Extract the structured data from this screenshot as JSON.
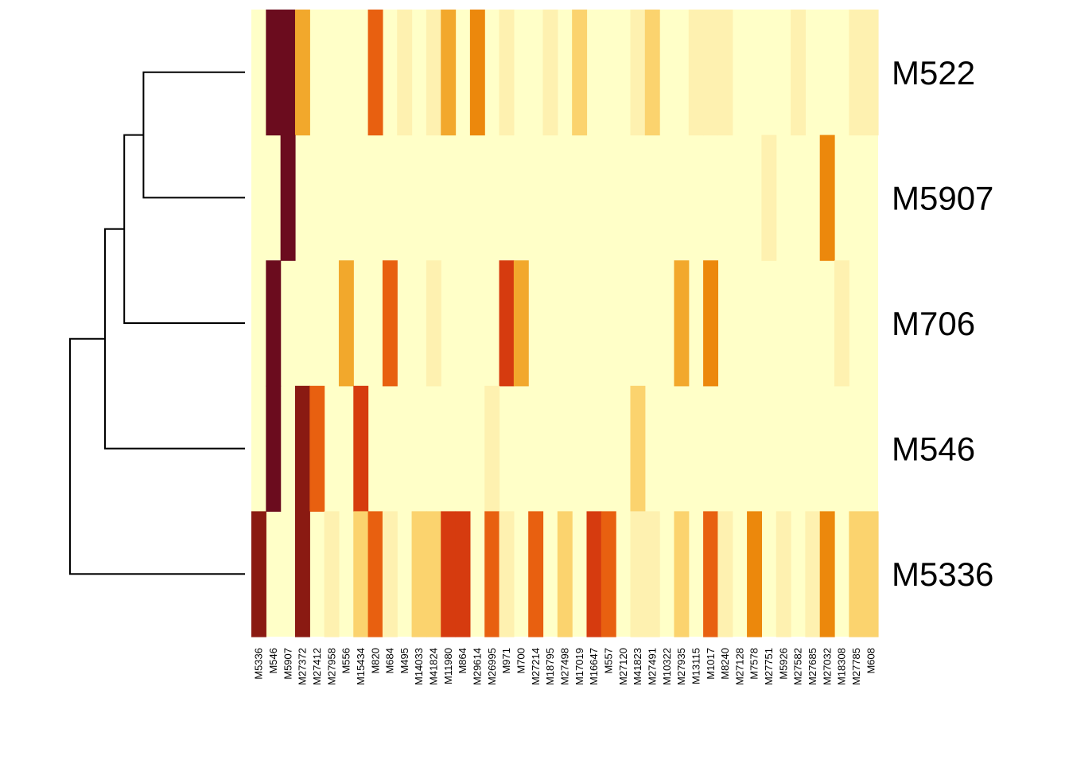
{
  "chart_data": {
    "type": "heatmap",
    "title": "",
    "xlabel": "",
    "ylabel": "",
    "colorscale": [
      "#FFFFC8",
      "#FEF1B0",
      "#FBD36E",
      "#F2A82C",
      "#EC880C",
      "#E86010",
      "#D63B0F",
      "#8A1A12",
      "#6B0C1E"
    ],
    "rows": [
      "M522",
      "M5907",
      "M706",
      "M546",
      "M5336"
    ],
    "columns": [
      "M5336",
      "M546",
      "M5907",
      "M27372",
      "M27412",
      "M27958",
      "M556",
      "M15434",
      "M820",
      "M684",
      "M495",
      "M14033",
      "M41824",
      "M11980",
      "M864",
      "M29614",
      "M26995",
      "M971",
      "M700",
      "M27214",
      "M18795",
      "M27498",
      "M17019",
      "M16647",
      "M557",
      "M27120",
      "M41823",
      "M27491",
      "M10322",
      "M27935",
      "M13115",
      "M1017",
      "M8240",
      "M27128",
      "M7578",
      "M27751",
      "M5926",
      "M27582",
      "M27685",
      "M27032",
      "M18308",
      "M27785",
      "M608"
    ],
    "value_range": [
      0,
      8
    ],
    "cells": [
      {
        "row": "M522",
        "col": "M546",
        "value": 8
      },
      {
        "row": "M522",
        "col": "M5907",
        "value": 8
      },
      {
        "row": "M522",
        "col": "M27372",
        "value": 3
      },
      {
        "row": "M522",
        "col": "M820",
        "value": 5
      },
      {
        "row": "M522",
        "col": "M495",
        "value": 1
      },
      {
        "row": "M522",
        "col": "M41824",
        "value": 1
      },
      {
        "row": "M522",
        "col": "M11980",
        "value": 3
      },
      {
        "row": "M522",
        "col": "M29614",
        "value": 4
      },
      {
        "row": "M522",
        "col": "M971",
        "value": 1
      },
      {
        "row": "M522",
        "col": "M18795",
        "value": 1
      },
      {
        "row": "M522",
        "col": "M17019",
        "value": 2
      },
      {
        "row": "M522",
        "col": "M41823",
        "value": 1
      },
      {
        "row": "M522",
        "col": "M27491",
        "value": 2
      },
      {
        "row": "M522",
        "col": "M13115",
        "value": 1
      },
      {
        "row": "M522",
        "col": "M1017",
        "value": 1
      },
      {
        "row": "M522",
        "col": "M8240",
        "value": 1
      },
      {
        "row": "M522",
        "col": "M27582",
        "value": 1
      },
      {
        "row": "M522",
        "col": "M27785",
        "value": 1
      },
      {
        "row": "M522",
        "col": "M608",
        "value": 1
      },
      {
        "row": "M5907",
        "col": "M5907",
        "value": 8
      },
      {
        "row": "M5907",
        "col": "M27751",
        "value": 1
      },
      {
        "row": "M5907",
        "col": "M27032",
        "value": 4
      },
      {
        "row": "M706",
        "col": "M546",
        "value": 8
      },
      {
        "row": "M706",
        "col": "M556",
        "value": 3
      },
      {
        "row": "M706",
        "col": "M684",
        "value": 5
      },
      {
        "row": "M706",
        "col": "M41824",
        "value": 1
      },
      {
        "row": "M706",
        "col": "M971",
        "value": 6
      },
      {
        "row": "M706",
        "col": "M700",
        "value": 3
      },
      {
        "row": "M706",
        "col": "M27935",
        "value": 3
      },
      {
        "row": "M706",
        "col": "M1017",
        "value": 4
      },
      {
        "row": "M706",
        "col": "M18308",
        "value": 1
      },
      {
        "row": "M546",
        "col": "M546",
        "value": 8
      },
      {
        "row": "M546",
        "col": "M27372",
        "value": 7
      },
      {
        "row": "M546",
        "col": "M27412",
        "value": 5
      },
      {
        "row": "M546",
        "col": "M15434",
        "value": 6
      },
      {
        "row": "M546",
        "col": "M26995",
        "value": 1
      },
      {
        "row": "M546",
        "col": "M41823",
        "value": 2
      },
      {
        "row": "M5336",
        "col": "M5336",
        "value": 7
      },
      {
        "row": "M5336",
        "col": "M27372",
        "value": 7
      },
      {
        "row": "M5336",
        "col": "M27958",
        "value": 1
      },
      {
        "row": "M5336",
        "col": "M15434",
        "value": 2
      },
      {
        "row": "M5336",
        "col": "M820",
        "value": 5
      },
      {
        "row": "M5336",
        "col": "M684",
        "value": 1
      },
      {
        "row": "M5336",
        "col": "M14033",
        "value": 2
      },
      {
        "row": "M5336",
        "col": "M41824",
        "value": 2
      },
      {
        "row": "M5336",
        "col": "M11980",
        "value": 6
      },
      {
        "row": "M5336",
        "col": "M864",
        "value": 6
      },
      {
        "row": "M5336",
        "col": "M26995",
        "value": 5
      },
      {
        "row": "M5336",
        "col": "M971",
        "value": 1
      },
      {
        "row": "M5336",
        "col": "M27214",
        "value": 5
      },
      {
        "row": "M5336",
        "col": "M27498",
        "value": 2
      },
      {
        "row": "M5336",
        "col": "M16647",
        "value": 6
      },
      {
        "row": "M5336",
        "col": "M557",
        "value": 5
      },
      {
        "row": "M5336",
        "col": "M41823",
        "value": 1
      },
      {
        "row": "M5336",
        "col": "M27491",
        "value": 1
      },
      {
        "row": "M5336",
        "col": "M27935",
        "value": 2
      },
      {
        "row": "M5336",
        "col": "M1017",
        "value": 5
      },
      {
        "row": "M5336",
        "col": "M8240",
        "value": 1
      },
      {
        "row": "M5336",
        "col": "M7578",
        "value": 4
      },
      {
        "row": "M5336",
        "col": "M5926",
        "value": 1
      },
      {
        "row": "M5336",
        "col": "M27685",
        "value": 1
      },
      {
        "row": "M5336",
        "col": "M27032",
        "value": 4
      },
      {
        "row": "M5336",
        "col": "M27785",
        "value": 2
      },
      {
        "row": "M5336",
        "col": "M608",
        "value": 2
      }
    ],
    "dendrogram": {
      "order": [
        "M522",
        "M5907",
        "M706",
        "M546",
        "M5336"
      ],
      "merges": [
        {
          "a": "M522",
          "b": "M5907",
          "height": 0.58
        },
        {
          "a": "M522+M5907",
          "b": "M706",
          "height": 0.69
        },
        {
          "a": "M522+M5907+M706",
          "b": "M546",
          "height": 0.8
        },
        {
          "a": "M522+M5907+M706+M546",
          "b": "M5336",
          "height": 1.0
        }
      ]
    }
  }
}
